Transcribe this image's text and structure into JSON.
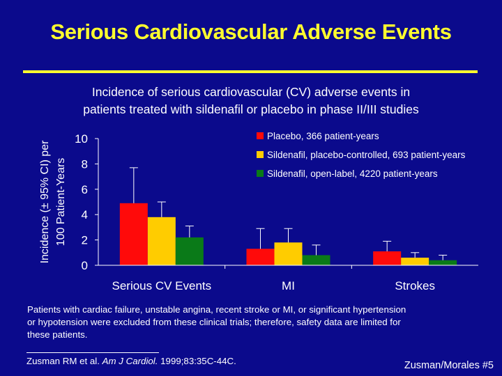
{
  "slide": {
    "title": "Serious Cardiovascular Adverse Events",
    "subtitle_line1": "Incidence of serious cardiovascular (CV) adverse events in",
    "subtitle_line2": "patients treated with sildenafil or placebo in phase II/III studies",
    "footnote_line1": "Patients with cardiac failure, unstable angina, recent stroke or MI, or significant hypertension",
    "footnote_line2": "or hypotension were excluded from these clinical trials; therefore, safety data are limited for",
    "footnote_line3": "these patients.",
    "reference_authors": "Zusman RM et al.",
    "reference_journal": "Am J Cardiol.",
    "reference_citation": "1999;83:35C-44C.",
    "slide_number": "Zusman/Morales #5"
  },
  "colors": {
    "background": "#0b0a8c",
    "title": "#ffff2e",
    "placebo": "#ff0a0a",
    "sildenafil_pc": "#ffcc00",
    "sildenafil_ol": "#0a7a18"
  },
  "chart_data": {
    "type": "bar",
    "title": "",
    "ylabel_line1": "Incidence (± 95% CI) per",
    "ylabel_line2": "100 Patient-Years",
    "xlabel": "",
    "ylim": [
      0,
      10
    ],
    "yticks": [
      0,
      2,
      4,
      6,
      8,
      10
    ],
    "ytick_labels": [
      "0",
      "2",
      "4",
      "6",
      "8",
      "10"
    ],
    "categories": [
      "Serious CV Events",
      "MI",
      "Strokes"
    ],
    "legend_position": "top-right",
    "series": [
      {
        "name": "Placebo, 366 patient-years",
        "color": "#ff0a0a",
        "values": [
          4.9,
          1.3,
          1.1
        ],
        "ci_upper": [
          7.7,
          2.9,
          1.9
        ]
      },
      {
        "name": "Sildenafil, placebo-controlled, 693 patient-years",
        "color": "#ffcc00",
        "values": [
          3.8,
          1.8,
          0.6
        ],
        "ci_upper": [
          5.0,
          2.9,
          1.0
        ]
      },
      {
        "name": "Sildenafil, open-label, 4220 patient-years",
        "color": "#0a7a18",
        "values": [
          2.2,
          0.8,
          0.4
        ],
        "ci_upper": [
          3.1,
          1.6,
          0.8
        ]
      }
    ]
  }
}
